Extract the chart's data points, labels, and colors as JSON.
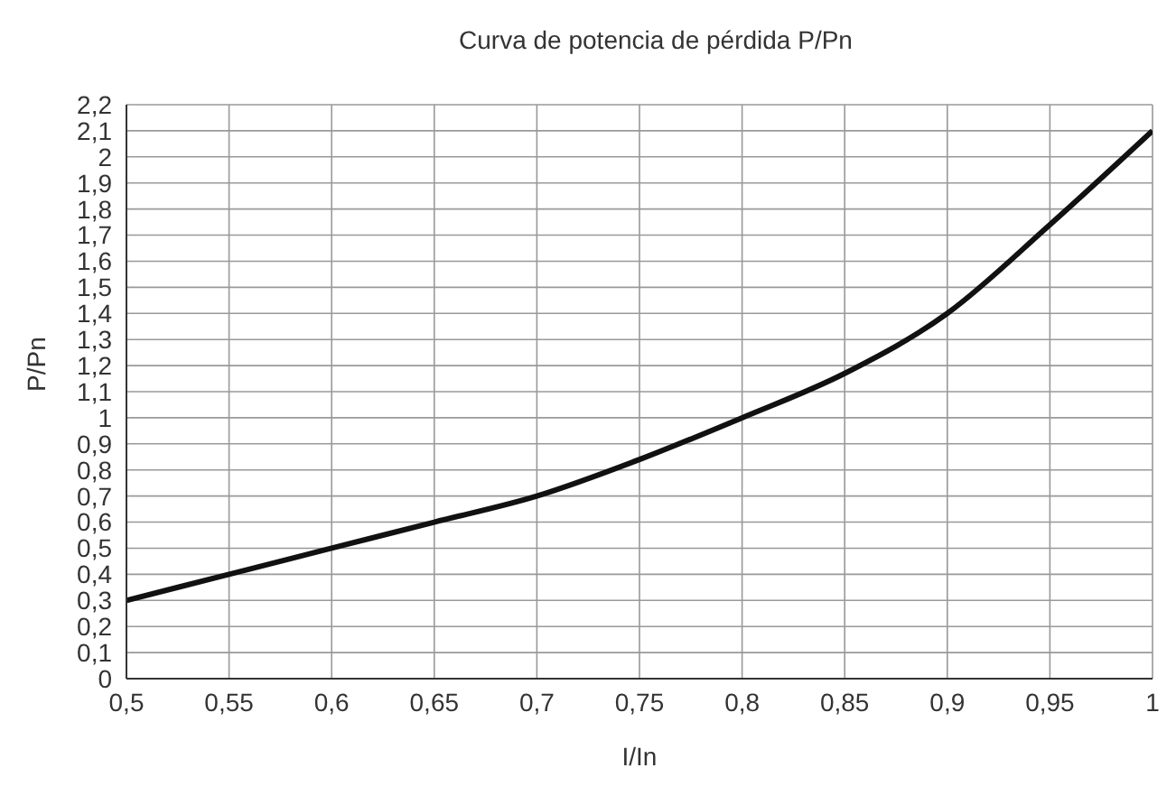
{
  "chart_data": {
    "type": "line",
    "title": "Curva de potencia de pérdida P/Pn",
    "xlabel": "I/In",
    "ylabel": "P/Pn",
    "x": [
      0.5,
      0.55,
      0.6,
      0.65,
      0.7,
      0.75,
      0.8,
      0.85,
      0.9,
      0.95,
      1.0
    ],
    "series": [
      {
        "color": "#111111",
        "values": [
          0.3,
          0.4,
          0.5,
          0.6,
          0.7,
          0.84,
          1.0,
          1.17,
          1.4,
          1.74,
          2.1
        ]
      }
    ],
    "xlim": [
      0.5,
      1
    ],
    "xticks": [
      {
        "value": 0.5,
        "label": "0,5"
      },
      {
        "value": 0.55,
        "label": "0,55"
      },
      {
        "value": 0.6,
        "label": "0,6"
      },
      {
        "value": 0.65,
        "label": "0,65"
      },
      {
        "value": 0.7,
        "label": "0,7"
      },
      {
        "value": 0.75,
        "label": "0,75"
      },
      {
        "value": 0.8,
        "label": "0,8"
      },
      {
        "value": 0.85,
        "label": "0,85"
      },
      {
        "value": 0.9,
        "label": "0,9"
      },
      {
        "value": 0.95,
        "label": "0,95"
      },
      1
    ],
    "ylim": [
      0,
      2.2
    ],
    "yticks": [
      0,
      {
        "value": 0.1,
        "label": "0,1"
      },
      {
        "value": 0.2,
        "label": "0,2"
      },
      {
        "value": 0.3,
        "label": "0,3"
      },
      {
        "value": 0.4,
        "label": "0,4"
      },
      {
        "value": 0.5,
        "label": "0,5"
      },
      {
        "value": 0.6,
        "label": "0,6"
      },
      {
        "value": 0.7,
        "label": "0,7"
      },
      {
        "value": 0.8,
        "label": "0,8"
      },
      {
        "value": 0.9,
        "label": "0,9"
      },
      1,
      {
        "value": 1.1,
        "label": "1,1"
      },
      {
        "value": 1.2,
        "label": "1,2"
      },
      {
        "value": 1.3,
        "label": "1,3"
      },
      {
        "value": 1.4,
        "label": "1,4"
      },
      {
        "value": 1.5,
        "label": "1,5"
      },
      {
        "value": 1.6,
        "label": "1,6"
      },
      {
        "value": 1.7,
        "label": "1,7"
      },
      {
        "value": 1.8,
        "label": "1,8"
      },
      {
        "value": 1.9,
        "label": "1,9"
      },
      2,
      {
        "value": 2.1,
        "label": "2,1"
      },
      {
        "value": 2.2,
        "label": "2,2"
      }
    ],
    "grid": true,
    "legend": false,
    "line_style": "solid"
  }
}
